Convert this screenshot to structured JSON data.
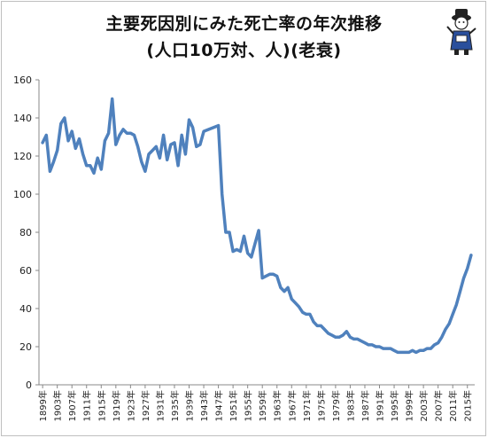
{
  "title_line1": "主要死因別にみた死亡率の年次推移",
  "title_line2": "(人口10万対、人)(老衰)",
  "mascot_icon": "hat-mascot-icon",
  "colors": {
    "line": "#4f81bd",
    "axis": "#888888",
    "grid": "#d9d9d9"
  },
  "chart_data": {
    "type": "line",
    "title": "主要死因別にみた死亡率の年次推移 (人口10万対、人)(老衰)",
    "xlabel": "",
    "ylabel": "",
    "ylim": [
      0,
      160
    ],
    "yticks": [
      0,
      20,
      40,
      60,
      80,
      100,
      120,
      140,
      160
    ],
    "grid": false,
    "xticks": [
      1899,
      1903,
      1907,
      1911,
      1915,
      1919,
      1923,
      1927,
      1931,
      1935,
      1939,
      1943,
      1947,
      1951,
      1955,
      1959,
      1963,
      1967,
      1971,
      1975,
      1979,
      1983,
      1987,
      1991,
      1995,
      1999,
      2003,
      2007,
      2011,
      2015
    ],
    "xtick_suffix": "年",
    "x": [
      1899,
      1900,
      1901,
      1902,
      1903,
      1904,
      1905,
      1906,
      1907,
      1908,
      1909,
      1910,
      1911,
      1912,
      1913,
      1914,
      1915,
      1916,
      1917,
      1918,
      1919,
      1920,
      1921,
      1922,
      1923,
      1924,
      1925,
      1926,
      1927,
      1928,
      1929,
      1930,
      1931,
      1932,
      1933,
      1934,
      1935,
      1936,
      1937,
      1938,
      1939,
      1940,
      1941,
      1942,
      1943,
      1947,
      1948,
      1949,
      1950,
      1951,
      1952,
      1953,
      1954,
      1955,
      1956,
      1957,
      1958,
      1959,
      1960,
      1961,
      1962,
      1963,
      1964,
      1965,
      1966,
      1967,
      1968,
      1969,
      1970,
      1971,
      1972,
      1973,
      1974,
      1975,
      1976,
      1977,
      1978,
      1979,
      1980,
      1981,
      1982,
      1983,
      1984,
      1985,
      1986,
      1987,
      1988,
      1989,
      1990,
      1991,
      1992,
      1993,
      1994,
      1995,
      1996,
      1997,
      1998,
      1999,
      2000,
      2001,
      2002,
      2003,
      2004,
      2005,
      2006,
      2007,
      2008,
      2009,
      2010,
      2011,
      2012,
      2013,
      2014,
      2015,
      2016
    ],
    "series": [
      {
        "values": [
          127,
          131,
          112,
          117,
          123,
          137,
          140,
          128,
          133,
          124,
          129,
          121,
          115,
          115,
          111,
          119,
          113,
          128,
          132,
          150,
          126,
          131,
          134,
          132,
          132,
          131,
          125,
          117,
          112,
          121,
          123,
          125,
          119,
          131,
          118,
          126,
          127,
          115,
          131,
          121,
          139,
          135,
          125,
          126,
          133,
          136,
          100,
          80,
          80,
          70,
          71,
          70,
          78,
          69,
          67,
          74,
          81,
          56,
          57,
          58,
          58,
          57,
          51,
          49,
          51,
          45,
          43,
          41,
          38,
          37,
          37,
          33,
          31,
          31,
          29,
          27,
          26,
          25,
          25,
          26,
          28,
          25,
          24,
          24,
          23,
          22,
          21,
          21,
          20,
          20,
          19,
          19,
          19,
          18,
          17,
          17,
          17,
          17,
          18,
          17,
          18,
          18,
          19,
          19,
          21,
          22,
          25,
          29,
          32,
          37,
          42,
          49,
          56,
          61,
          68
        ]
      }
    ]
  }
}
